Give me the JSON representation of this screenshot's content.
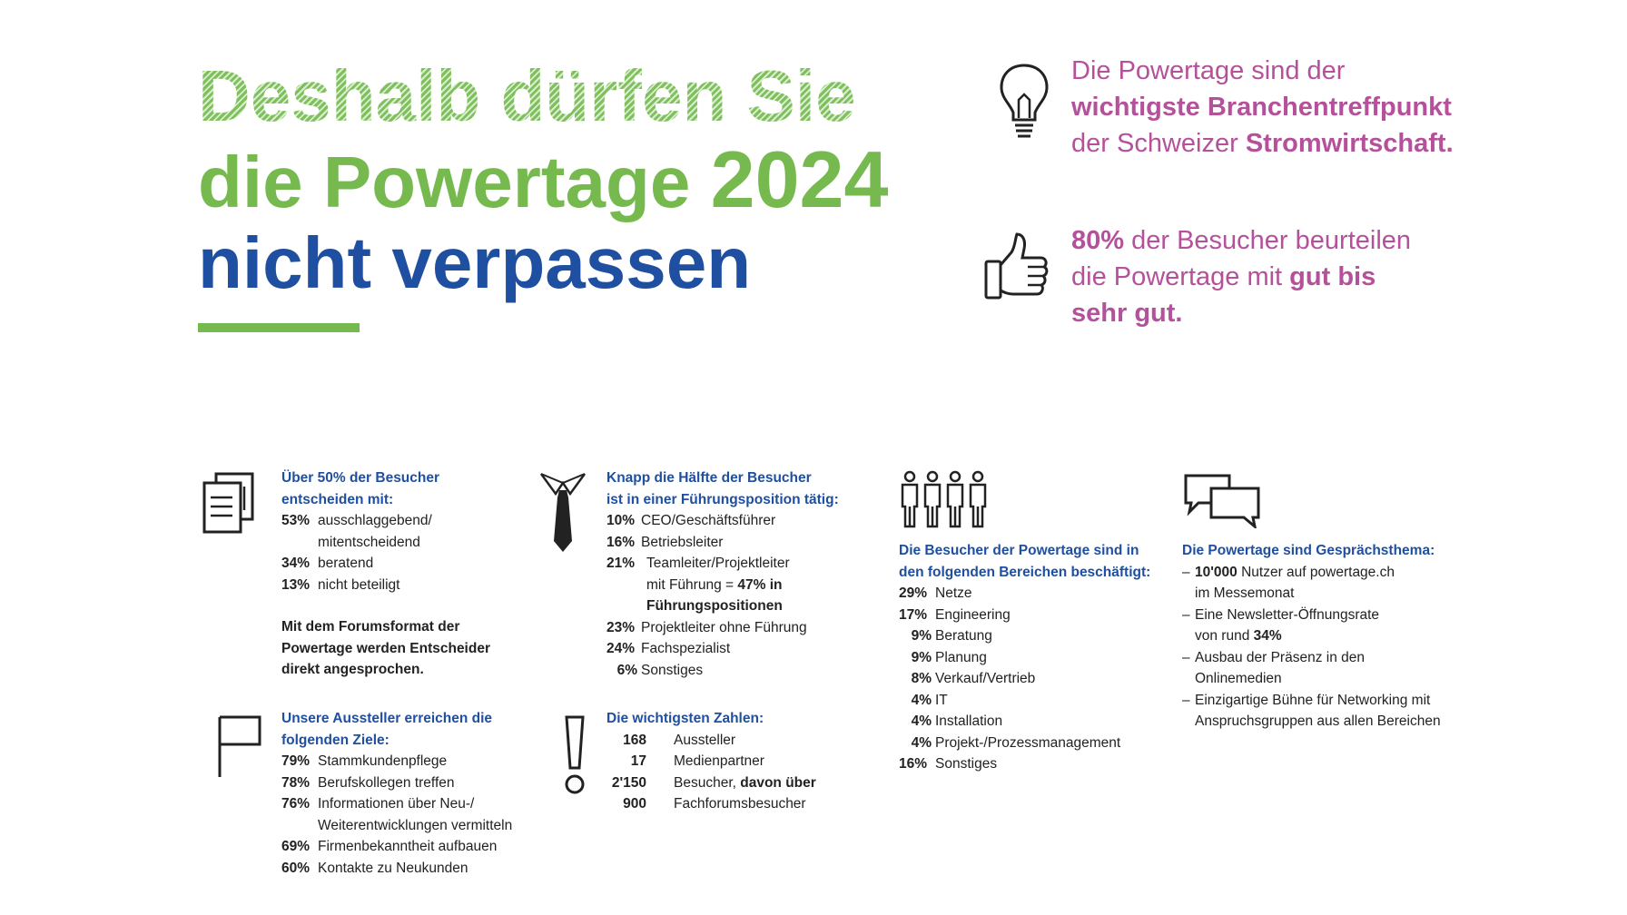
{
  "headline": {
    "line1": "Deshalb dürfen Sie",
    "line2_text": "die Powertage",
    "line2_year": "2024",
    "line3": "nicht verpassen"
  },
  "callouts": {
    "lightbulb": {
      "line1": "Die Powertage sind der",
      "line2": "wichtigste Branchentreffpunkt",
      "line3_pre": "der Schweizer ",
      "line3_bold": "Stromwirtschaft."
    },
    "thumbs": {
      "line1_bold": "80%",
      "line1_rest": " der Besucher beurteilen",
      "line2_pre": "die Powertage mit ",
      "line2_bold": "gut bis",
      "line3_bold": "sehr gut."
    }
  },
  "decisions": {
    "head1": "Über 50% der Besucher",
    "head2": "entscheiden mit:",
    "items": [
      {
        "pct": "53%",
        "label": "ausschlaggebend/",
        "label2": "mitentscheidend"
      },
      {
        "pct": "34%",
        "label": "beratend"
      },
      {
        "pct": "13%",
        "label": "nicht beteiligt"
      }
    ],
    "note1": "Mit dem Forumsformat der",
    "note2": "Powertage werden Entscheider",
    "note3": "direkt angesprochen."
  },
  "exhibitor_goals": {
    "head1": "Unsere Aussteller erreichen die",
    "head2": "folgenden Ziele:",
    "items": [
      {
        "pct": "79%",
        "label": "Stammkundenpflege"
      },
      {
        "pct": "78%",
        "label": "Berufskollegen treffen"
      },
      {
        "pct": "76%",
        "label": "Informationen über Neu-/",
        "label2": "Weiterentwicklungen vermitteln"
      },
      {
        "pct": "69%",
        "label": "Firmenbekanntheit aufbauen"
      },
      {
        "pct": "60%",
        "label": "Kontakte zu Neukunden"
      }
    ]
  },
  "leadership": {
    "head1": "Knapp die Hälfte der Besucher",
    "head2": "ist in einer Führungsposition tätig:",
    "items": [
      {
        "pct": "10%",
        "label": "CEO/Geschäftsführer"
      },
      {
        "pct": "16%",
        "label": "Betriebsleiter"
      },
      {
        "pct": "21%",
        "label": "Teamleiter/Projektleiter",
        "label2_pre": "mit Führung = ",
        "label2_bold": "47% in",
        "label3_bold": "Führungspositionen"
      },
      {
        "pct": "23%",
        "label": "Projektleiter ohne Führung"
      },
      {
        "pct": "24%",
        "label": "Fachspezialist"
      },
      {
        "pct": "6%",
        "label": "Sonstiges"
      }
    ]
  },
  "key_figures": {
    "head": "Die wichtigsten Zahlen:",
    "items": [
      {
        "num": "168",
        "label": "Aussteller"
      },
      {
        "num": "17",
        "label": "Medienpartner"
      },
      {
        "num": "2'150",
        "label_pre": "Besucher, ",
        "label_bold": "davon über"
      },
      {
        "num": "900",
        "label": "Fachforumsbesucher"
      }
    ]
  },
  "sectors": {
    "head1": "Die Besucher der Powertage sind in",
    "head2": "den folgenden Bereichen beschäftigt:",
    "items": [
      {
        "pct": "29%",
        "label": "Netze"
      },
      {
        "pct": "17%",
        "label": "Engineering"
      },
      {
        "pct": "9%",
        "label": "Beratung"
      },
      {
        "pct": "9%",
        "label": "Planung"
      },
      {
        "pct": "8%",
        "label": "Verkauf/Vertrieb"
      },
      {
        "pct": "4%",
        "label": "IT"
      },
      {
        "pct": "4%",
        "label": "Installation"
      },
      {
        "pct": "4%",
        "label": "Projekt-/Prozessmanagement"
      },
      {
        "pct": "16%",
        "label": "Sonstiges"
      }
    ]
  },
  "talking_point": {
    "head": "Die Powertage sind Gesprächsthema:",
    "items": [
      {
        "bold": "10'000",
        "rest": " Nutzer auf powertage.ch",
        "line2": "im Messemonat"
      },
      {
        "pre": "Eine Newsletter-Öffnungsrate",
        "line2_pre": "von rund ",
        "line2_bold": "34%"
      },
      {
        "pre": "Ausbau der Präsenz in den",
        "line2": "Onlinemedien"
      },
      {
        "pre": "Einzigartige Bühne für Networking mit",
        "line2": "Anspruchsgruppen aus allen Bereichen"
      }
    ]
  },
  "colors": {
    "green": "#76b94e",
    "blue": "#1f4fa0",
    "pink": "#b5519a"
  },
  "icons": [
    "lightbulb-icon",
    "thumbs-up-icon",
    "documents-icon",
    "flag-icon",
    "tie-icon",
    "exclamation-icon",
    "people-icon",
    "speech-bubbles-icon"
  ]
}
